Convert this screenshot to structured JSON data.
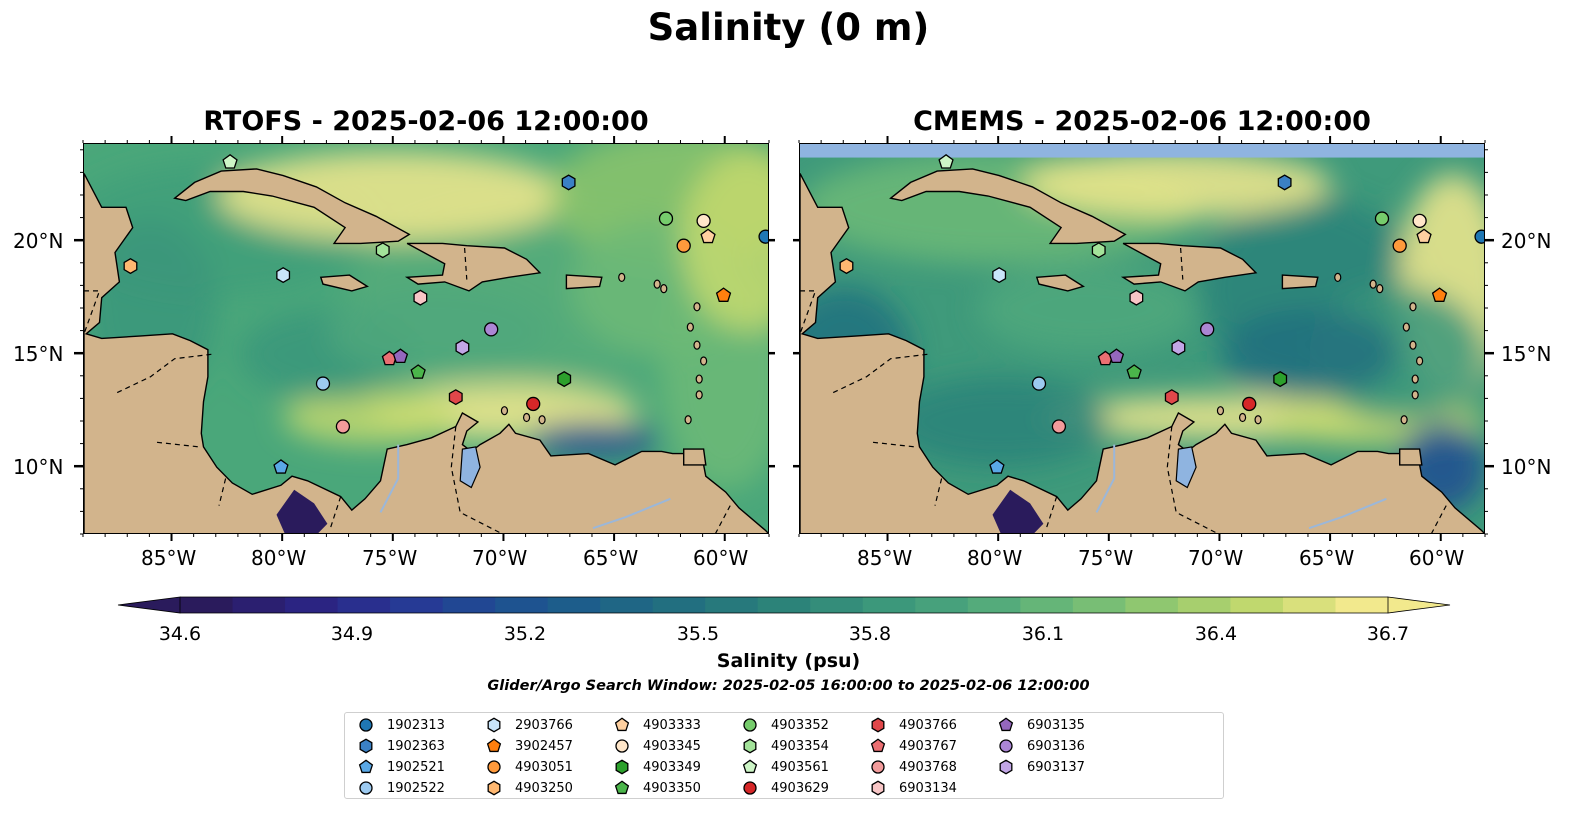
{
  "figure": {
    "title": "Salinity (0 m)",
    "panels": [
      {
        "title": "RTOFS - 2025-02-06 12:00:00",
        "model": "RTOFS"
      },
      {
        "title": "CMEMS - 2025-02-06 12:00:00",
        "model": "CMEMS"
      }
    ],
    "lon_ticks": [
      "85°W",
      "80°W",
      "75°W",
      "70°W",
      "65°W",
      "60°W"
    ],
    "lat_ticks": [
      "20°N",
      "15°N",
      "10°N"
    ]
  },
  "map_extent": {
    "lon_min": -89,
    "lon_max": -58,
    "lat_min": 7,
    "lat_max": 24.3
  },
  "colorbar": {
    "label": "Salinity (psu)",
    "range": [
      34.6,
      36.7
    ],
    "ticks": [
      "34.6",
      "34.9",
      "35.2",
      "35.5",
      "35.8",
      "36.1",
      "36.4",
      "36.7"
    ],
    "extend": "both",
    "colors": [
      "#2a1b5c",
      "#2b2280",
      "#283696",
      "#1f4e92",
      "#1d6089",
      "#22717f",
      "#2c8379",
      "#3a967b",
      "#4fa87c",
      "#6dba77",
      "#96ca6e",
      "#c4d96e",
      "#f2e98d"
    ]
  },
  "search_window": "Glider/Argo Search Window: 2025-02-05 16:00:00 to 2025-02-06 12:00:00",
  "legend": {
    "items": [
      {
        "id": "1902313",
        "color": "#1f77b4",
        "marker": "circle"
      },
      {
        "id": "1902363",
        "color": "#3b80c4",
        "marker": "hexagon"
      },
      {
        "id": "1902521",
        "color": "#5aa8e6",
        "marker": "pentagon"
      },
      {
        "id": "1902522",
        "color": "#9ccaf0",
        "marker": "circle"
      },
      {
        "id": "2903766",
        "color": "#c9e5fa",
        "marker": "hexagon"
      },
      {
        "id": "3902457",
        "color": "#ff7f0e",
        "marker": "pentagon"
      },
      {
        "id": "4903051",
        "color": "#ff9a3c",
        "marker": "circle"
      },
      {
        "id": "4903250",
        "color": "#ffb871",
        "marker": "hexagon"
      },
      {
        "id": "4903333",
        "color": "#ffd0a0",
        "marker": "pentagon"
      },
      {
        "id": "4903345",
        "color": "#ffe6c9",
        "marker": "circle"
      },
      {
        "id": "4903349",
        "color": "#2ca02c",
        "marker": "hexagon"
      },
      {
        "id": "4903350",
        "color": "#4bb54b",
        "marker": "pentagon"
      },
      {
        "id": "4903352",
        "color": "#76cc6c",
        "marker": "circle"
      },
      {
        "id": "4903354",
        "color": "#a3e39a",
        "marker": "hexagon"
      },
      {
        "id": "4903561",
        "color": "#cdf5c6",
        "marker": "pentagon"
      },
      {
        "id": "4903629",
        "color": "#d62728",
        "marker": "circle"
      },
      {
        "id": "4903766",
        "color": "#e0474a",
        "marker": "hexagon"
      },
      {
        "id": "4903767",
        "color": "#eb6f72",
        "marker": "pentagon"
      },
      {
        "id": "4903768",
        "color": "#f29b9b",
        "marker": "circle"
      },
      {
        "id": "6903134",
        "color": "#f8c6c6",
        "marker": "hexagon"
      },
      {
        "id": "6903135",
        "color": "#9467bd",
        "marker": "pentagon"
      },
      {
        "id": "6903136",
        "color": "#ab86d4",
        "marker": "circle"
      },
      {
        "id": "6903137",
        "color": "#c2a6e6",
        "marker": "hexagon"
      }
    ]
  },
  "observations": [
    {
      "id": "1902313",
      "lon": -58.2,
      "lat": 20.2
    },
    {
      "id": "1902363",
      "lon": -67.1,
      "lat": 22.6
    },
    {
      "id": "1902521",
      "lon": -80.1,
      "lat": 10.0
    },
    {
      "id": "1902522",
      "lon": -78.2,
      "lat": 13.7
    },
    {
      "id": "2903766",
      "lon": -80.0,
      "lat": 18.5
    },
    {
      "id": "3902457",
      "lon": -60.1,
      "lat": 17.6
    },
    {
      "id": "4903051",
      "lon": -61.9,
      "lat": 19.8
    },
    {
      "id": "4903250",
      "lon": -86.9,
      "lat": 18.9
    },
    {
      "id": "4903333",
      "lon": -60.8,
      "lat": 20.2
    },
    {
      "id": "4903345",
      "lon": -61.0,
      "lat": 20.9
    },
    {
      "id": "4903349",
      "lon": -67.3,
      "lat": 13.9
    },
    {
      "id": "4903350",
      "lon": -73.9,
      "lat": 14.2
    },
    {
      "id": "4903352",
      "lon": -62.7,
      "lat": 21.0
    },
    {
      "id": "4903354",
      "lon": -75.5,
      "lat": 19.6
    },
    {
      "id": "4903561",
      "lon": -82.4,
      "lat": 23.5
    },
    {
      "id": "4903629",
      "lon": -68.7,
      "lat": 12.8
    },
    {
      "id": "4903766",
      "lon": -72.2,
      "lat": 13.1
    },
    {
      "id": "4903767",
      "lon": -75.2,
      "lat": 14.8
    },
    {
      "id": "4903768",
      "lon": -77.3,
      "lat": 11.8
    },
    {
      "id": "6903134",
      "lon": -73.8,
      "lat": 17.5
    },
    {
      "id": "6903135",
      "lon": -74.7,
      "lat": 14.9
    },
    {
      "id": "6903136",
      "lon": -70.6,
      "lat": 16.1
    },
    {
      "id": "6903137",
      "lon": -71.9,
      "lat": 15.3
    }
  ]
}
